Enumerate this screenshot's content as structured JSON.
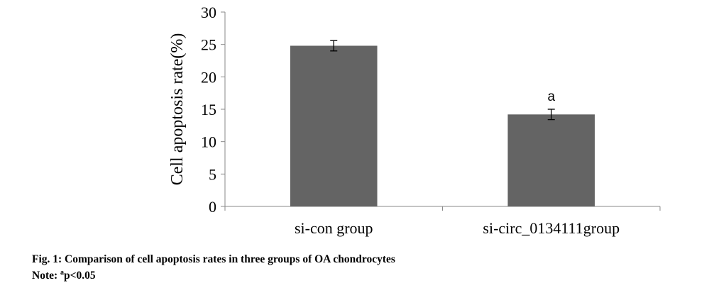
{
  "chart_data": {
    "type": "bar",
    "categories": [
      "si-con group",
      "si-circ_0134111group"
    ],
    "values": [
      24.8,
      14.2
    ],
    "error": [
      0.8,
      0.8
    ],
    "annotations": [
      "",
      "a"
    ],
    "ylabel": "Cell apoptosis rate(%)",
    "xlabel": "",
    "ylim": [
      0,
      30
    ],
    "yticks": [
      0,
      5,
      10,
      15,
      20,
      25,
      30
    ],
    "bar_color": "#646464",
    "grid": false
  },
  "caption": {
    "title": "Fig. 1: Comparison of cell apoptosis rates in three groups of OA chondrocytes",
    "note_prefix": "Note: ",
    "note_sup": "a",
    "note_text": "p<0.05"
  }
}
